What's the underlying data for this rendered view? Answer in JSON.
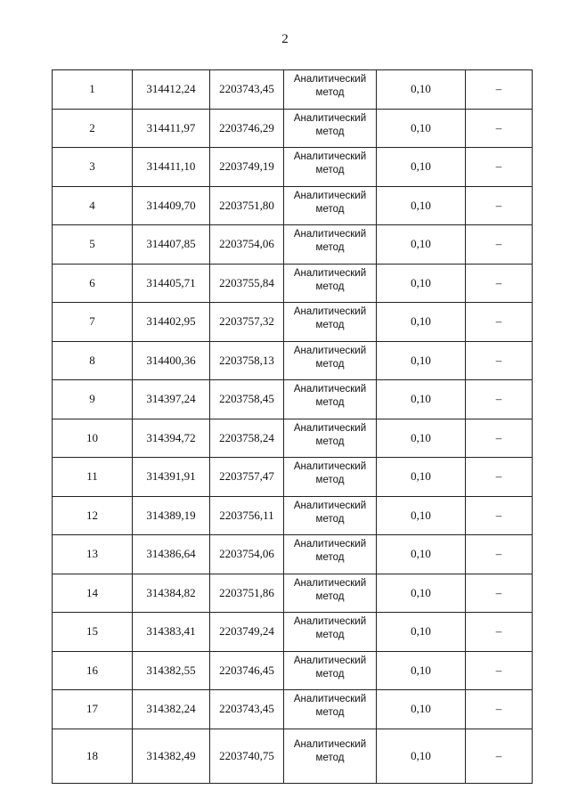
{
  "page_number": "2",
  "table": {
    "method_line1": "Аналитический",
    "method_line2": "метод",
    "rows": [
      {
        "n": "1",
        "x": "314412,24",
        "y": "2203743,45",
        "acc": "0,10",
        "note": "–"
      },
      {
        "n": "2",
        "x": "314411,97",
        "y": "2203746,29",
        "acc": "0,10",
        "note": "–"
      },
      {
        "n": "3",
        "x": "314411,10",
        "y": "2203749,19",
        "acc": "0,10",
        "note": "–"
      },
      {
        "n": "4",
        "x": "314409,70",
        "y": "2203751,80",
        "acc": "0,10",
        "note": "–"
      },
      {
        "n": "5",
        "x": "314407,85",
        "y": "2203754,06",
        "acc": "0,10",
        "note": "–"
      },
      {
        "n": "6",
        "x": "314405,71",
        "y": "2203755,84",
        "acc": "0,10",
        "note": "–"
      },
      {
        "n": "7",
        "x": "314402,95",
        "y": "2203757,32",
        "acc": "0,10",
        "note": "–"
      },
      {
        "n": "8",
        "x": "314400,36",
        "y": "2203758,13",
        "acc": "0,10",
        "note": "–"
      },
      {
        "n": "9",
        "x": "314397,24",
        "y": "2203758,45",
        "acc": "0,10",
        "note": "–"
      },
      {
        "n": "10",
        "x": "314394,72",
        "y": "2203758,24",
        "acc": "0,10",
        "note": "–"
      },
      {
        "n": "11",
        "x": "314391,91",
        "y": "2203757,47",
        "acc": "0,10",
        "note": "–"
      },
      {
        "n": "12",
        "x": "314389,19",
        "y": "2203756,11",
        "acc": "0,10",
        "note": "–"
      },
      {
        "n": "13",
        "x": "314386,64",
        "y": "2203754,06",
        "acc": "0,10",
        "note": "–"
      },
      {
        "n": "14",
        "x": "314384,82",
        "y": "2203751,86",
        "acc": "0,10",
        "note": "–"
      },
      {
        "n": "15",
        "x": "314383,41",
        "y": "2203749,24",
        "acc": "0,10",
        "note": "–"
      },
      {
        "n": "16",
        "x": "314382,55",
        "y": "2203746,45",
        "acc": "0,10",
        "note": "–"
      },
      {
        "n": "17",
        "x": "314382,24",
        "y": "2203743,45",
        "acc": "0,10",
        "note": "–"
      },
      {
        "n": "18",
        "x": "314382,49",
        "y": "2203740,75",
        "acc": "0,10",
        "note": "–"
      }
    ]
  }
}
